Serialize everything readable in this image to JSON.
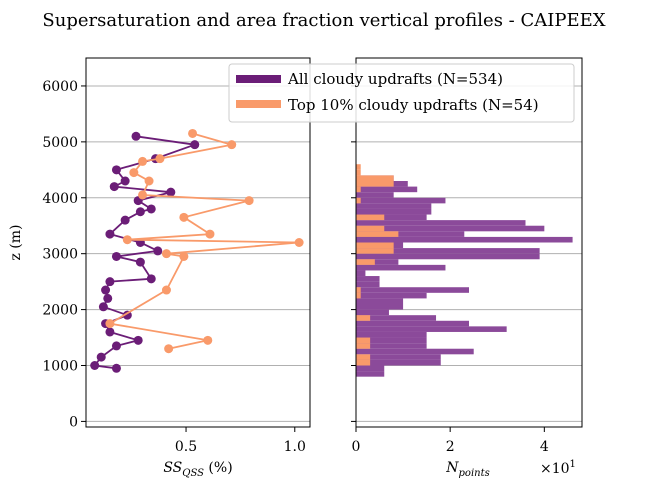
{
  "colors": {
    "all": "#6b1d77",
    "top": "#f99a6a",
    "all_bar": "#8b4a9a",
    "grid": "#b0b0b0"
  },
  "chart_data": {
    "title": "Supersaturation and area fraction vertical profiles - CAIPEEX",
    "legend": {
      "placement": "upper-right",
      "entries": [
        "All cloudy updrafts (N=534)",
        "Top 10% cloudy updrafts (N=54)"
      ]
    },
    "left": {
      "type": "line",
      "xlabel": "SS",
      "xlabel_sub": "QSS",
      "xlabel_unit": " (%)",
      "ylabel": "z (m)",
      "xlim": [
        0.04,
        1.07
      ],
      "ylim": [
        -100,
        6500
      ],
      "xticks": [
        0.5,
        1.0
      ],
      "xtick_labels": [
        "0.5",
        "1.0"
      ],
      "yticks": [
        0,
        1000,
        2000,
        3000,
        4000,
        5000,
        6000
      ],
      "ytick_labels": [
        "0",
        "1000",
        "2000",
        "3000",
        "4000",
        "5000",
        "6000"
      ],
      "grid": "horizontal",
      "series": [
        {
          "name": "All cloudy updrafts (N=534)",
          "x": [
            0.18,
            0.08,
            0.11,
            0.18,
            0.28,
            0.15,
            0.13,
            0.23,
            0.12,
            0.14,
            0.13,
            0.15,
            0.34,
            0.29,
            0.18,
            0.37,
            0.29,
            0.15,
            0.22,
            0.29,
            0.34,
            0.28,
            0.43,
            0.17,
            0.22,
            0.18,
            0.36,
            0.54,
            0.27
          ],
          "y": [
            950,
            1000,
            1150,
            1350,
            1450,
            1600,
            1750,
            1900,
            2050,
            2200,
            2350,
            2500,
            2550,
            2850,
            2950,
            3050,
            3200,
            3350,
            3600,
            3750,
            3800,
            3950,
            4100,
            4200,
            4300,
            4500,
            4700,
            4950,
            5100
          ]
        },
        {
          "name": "Top 10% cloudy updrafts (N=54)",
          "x": [
            0.42,
            0.6,
            0.15,
            0.41,
            0.49,
            0.41,
            1.02,
            0.23,
            0.61,
            0.49,
            0.79,
            0.3,
            0.33,
            0.26,
            0.3,
            0.38,
            0.71,
            0.53
          ],
          "y": [
            1300,
            1450,
            1750,
            2350,
            2950,
            3000,
            3200,
            3250,
            3350,
            3650,
            3950,
            4050,
            4300,
            4450,
            4650,
            4700,
            4950,
            5150
          ]
        }
      ]
    },
    "right": {
      "type": "bar",
      "orientation": "horizontal",
      "xlabel": "N",
      "xlabel_sub": "points",
      "multiplier": "×10",
      "multiplier_exp": "1",
      "xlim": [
        0,
        48
      ],
      "ylim": [
        -100,
        6500
      ],
      "xticks": [
        0,
        20,
        40
      ],
      "xtick_labels": [
        "0",
        "2",
        "4"
      ],
      "bin_height": 100,
      "series": [
        {
          "name": "All cloudy updrafts (N=534)",
          "bins": [
            [
              800,
              6
            ],
            [
              900,
              6
            ],
            [
              1000,
              18
            ],
            [
              1100,
              18
            ],
            [
              1200,
              25
            ],
            [
              1300,
              15
            ],
            [
              1400,
              15
            ],
            [
              1500,
              15
            ],
            [
              1600,
              32
            ],
            [
              1700,
              24
            ],
            [
              1800,
              17
            ],
            [
              1900,
              7
            ],
            [
              2000,
              10
            ],
            [
              2100,
              10
            ],
            [
              2200,
              15
            ],
            [
              2300,
              24
            ],
            [
              2400,
              5
            ],
            [
              2500,
              5
            ],
            [
              2600,
              2
            ],
            [
              2700,
              19
            ],
            [
              2800,
              9
            ],
            [
              2900,
              39
            ],
            [
              3000,
              39
            ],
            [
              3100,
              10
            ],
            [
              3200,
              46
            ],
            [
              3300,
              23
            ],
            [
              3400,
              40
            ],
            [
              3500,
              36
            ],
            [
              3600,
              15
            ],
            [
              3700,
              16
            ],
            [
              3800,
              16
            ],
            [
              3900,
              19
            ],
            [
              4000,
              8
            ],
            [
              4100,
              13
            ],
            [
              4200,
              11
            ],
            [
              4300,
              8
            ]
          ]
        },
        {
          "name": "Top 10% cloudy updrafts (N=54)",
          "bins": [
            [
              1000,
              3
            ],
            [
              1100,
              3
            ],
            [
              1300,
              3
            ],
            [
              1400,
              3
            ],
            [
              1800,
              3
            ],
            [
              2200,
              1
            ],
            [
              2300,
              1
            ],
            [
              2800,
              4
            ],
            [
              3000,
              8
            ],
            [
              3100,
              8
            ],
            [
              3300,
              9
            ],
            [
              3400,
              6
            ],
            [
              3600,
              6
            ],
            [
              3900,
              1
            ],
            [
              4100,
              1
            ],
            [
              4200,
              8
            ],
            [
              4300,
              8
            ],
            [
              4400,
              1
            ],
            [
              4500,
              1
            ]
          ]
        }
      ]
    }
  }
}
